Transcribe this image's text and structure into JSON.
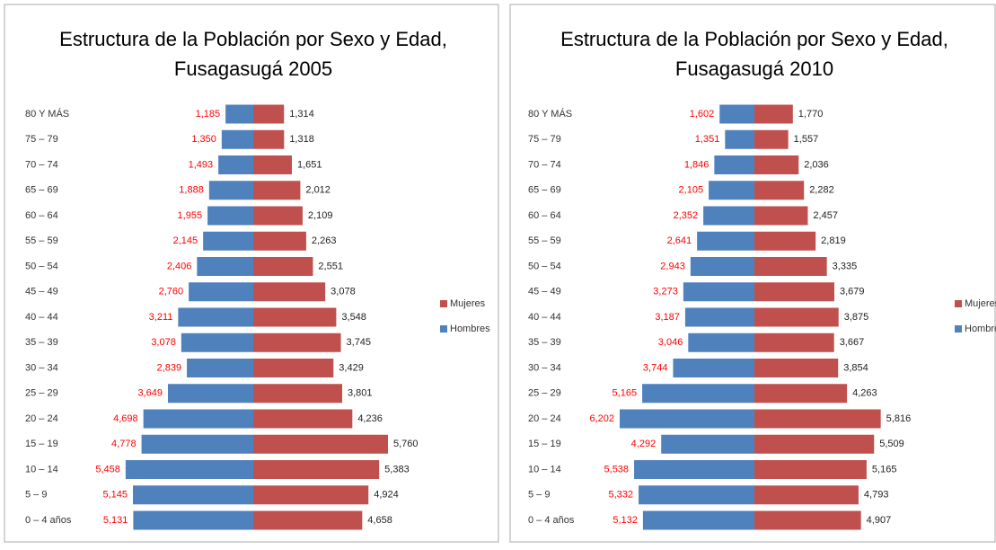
{
  "chart_data": [
    {
      "type": "pyramid",
      "title": "Estructura de la Población por Sexo y Edad,",
      "subtitle": "Fusagasugá 2005",
      "categories": [
        "80 Y MÁS",
        "75 – 79",
        "70 – 74",
        "65 – 69",
        "60 – 64",
        "55 – 59",
        "50 – 54",
        "45 – 49",
        "40 – 44",
        "35 – 39",
        "30 – 34",
        "25 – 29",
        "20 – 24",
        "15 – 19",
        "10 – 14",
        "5 – 9",
        "0 – 4 años"
      ],
      "series": [
        {
          "name": "Mujeres",
          "color": "#c0504d",
          "values": [
            1314,
            1318,
            1651,
            2012,
            2109,
            2263,
            2551,
            3078,
            3548,
            3745,
            3429,
            3801,
            4236,
            5760,
            5383,
            4924,
            4658
          ],
          "value_labels": [
            "1,314",
            "1,318",
            "1,651",
            "2,012",
            "2,109",
            "2,263",
            "2,551",
            "3,078",
            "3,548",
            "3,745",
            "3,429",
            "3,801",
            "4,236",
            "5,760",
            "5,383",
            "4,924",
            "4,658"
          ]
        },
        {
          "name": "Hombres",
          "color": "#4f81bd",
          "values": [
            1185,
            1350,
            1493,
            1888,
            1955,
            2145,
            2406,
            2760,
            3211,
            3078,
            2839,
            3649,
            4698,
            4778,
            5458,
            5145,
            5131
          ],
          "value_labels": [
            "1,185",
            "1,350",
            "1,493",
            "1,888",
            "1,955",
            "2,145",
            "2,406",
            "2,760",
            "3,211",
            "3,078",
            "2,839",
            "3,649",
            "4,698",
            "4,778",
            "5,458",
            "5,145",
            "5,131"
          ]
        }
      ]
    },
    {
      "type": "pyramid",
      "title": "Estructura de la Población por Sexo y Edad,",
      "subtitle": "Fusagasugá 2010",
      "categories": [
        "80 Y MÁS",
        "75 – 79",
        "70 – 74",
        "65 – 69",
        "60 – 64",
        "55 – 59",
        "50 – 54",
        "45 – 49",
        "40 – 44",
        "35 – 39",
        "30 – 34",
        "25 – 29",
        "20 – 24",
        "15 – 19",
        "10 – 14",
        "5 – 9",
        "0 – 4 años"
      ],
      "series": [
        {
          "name": "Mujeres",
          "color": "#c0504d",
          "values": [
            1770,
            1557,
            2036,
            2282,
            2457,
            2819,
            3335,
            3679,
            3875,
            3667,
            3854,
            4263,
            5816,
            5509,
            5165,
            4793,
            4907
          ],
          "value_labels": [
            "1,770",
            "1,557",
            "2,036",
            "2,282",
            "2,457",
            "2,819",
            "3,335",
            "3,679",
            "3,875",
            "3,667",
            "3,854",
            "4,263",
            "5,816",
            "5,509",
            "5,165",
            "4,793",
            "4,907"
          ]
        },
        {
          "name": "Hombres",
          "color": "#4f81bd",
          "values": [
            1602,
            1351,
            1846,
            2105,
            2352,
            2641,
            2943,
            3273,
            3187,
            3046,
            3744,
            5165,
            6202,
            4292,
            5538,
            5332,
            5132
          ],
          "value_labels": [
            "1,602",
            "1,351",
            "1,846",
            "2,105",
            "2,352",
            "2,641",
            "2,943",
            "3,273",
            "3,187",
            "3,046",
            "3,744",
            "5,165",
            "6,202",
            "4,292",
            "5,538",
            "5,332",
            "5,132"
          ]
        }
      ]
    }
  ]
}
